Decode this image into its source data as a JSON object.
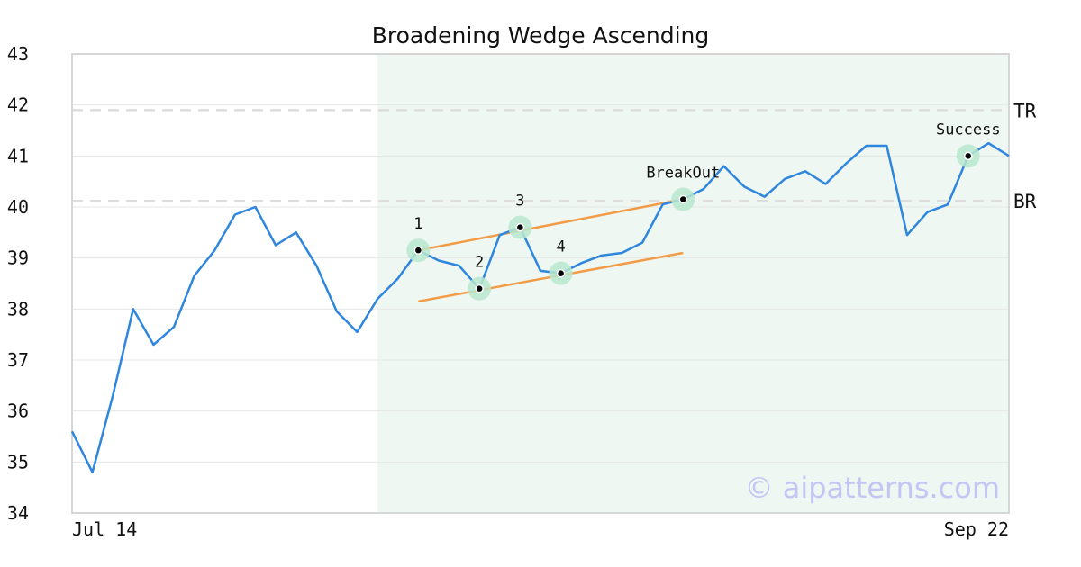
{
  "chart_data": {
    "type": "line",
    "title": "Broadening Wedge Ascending",
    "xlabel": "",
    "ylabel": "",
    "ylim": [
      34,
      43
    ],
    "y_ticks": [
      34,
      35,
      36,
      37,
      38,
      39,
      40,
      41,
      42,
      43
    ],
    "x_tick_labels": [
      {
        "label": "Jul 14",
        "index": 0
      },
      {
        "label": "Sep 22",
        "index": 46
      }
    ],
    "grid": true,
    "colors": {
      "price": "#2e86de",
      "trendline": "#f39c47",
      "pattern_zone": "#eef7f2",
      "marker_halo": "#b9e8cf",
      "levels": "#dddddd",
      "watermark": "#c5c5f5"
    },
    "series": [
      {
        "values": [
          35.6,
          34.8,
          36.3,
          38.0,
          37.3,
          37.65,
          38.65,
          39.15,
          39.85,
          40.0,
          39.25,
          39.5,
          38.85,
          37.95,
          37.55,
          38.2,
          38.6,
          39.15,
          38.95,
          38.85,
          38.4,
          39.45,
          39.6,
          38.75,
          38.7,
          38.9,
          39.05,
          39.1,
          39.3,
          40.05,
          40.15,
          40.35,
          40.8,
          40.4,
          40.2,
          40.55,
          40.7,
          40.45,
          40.85,
          41.2,
          41.2,
          39.45,
          39.9,
          40.05,
          41.0,
          41.25,
          41.0
        ]
      }
    ],
    "pattern_zone": {
      "start_index": 15,
      "end_index": 46
    },
    "trendlines": [
      {
        "from": {
          "index": 17,
          "value": 39.15
        },
        "to": {
          "index": 30,
          "value": 40.15
        }
      },
      {
        "from": {
          "index": 17,
          "value": 38.15
        },
        "to": {
          "index": 30,
          "value": 39.1
        }
      }
    ],
    "levels": [
      {
        "label": "TR",
        "value": 41.9
      },
      {
        "label": "BR",
        "value": 40.12
      }
    ],
    "points": [
      {
        "label": "1",
        "index": 17,
        "value": 39.15
      },
      {
        "label": "2",
        "index": 20,
        "value": 38.4
      },
      {
        "label": "3",
        "index": 22,
        "value": 39.6
      },
      {
        "label": "4",
        "index": 24,
        "value": 38.7
      },
      {
        "label": "BreakOut",
        "index": 30,
        "value": 40.15
      },
      {
        "label": "Success",
        "index": 44,
        "value": 41.0
      }
    ],
    "watermark": "© aipatterns.com"
  }
}
